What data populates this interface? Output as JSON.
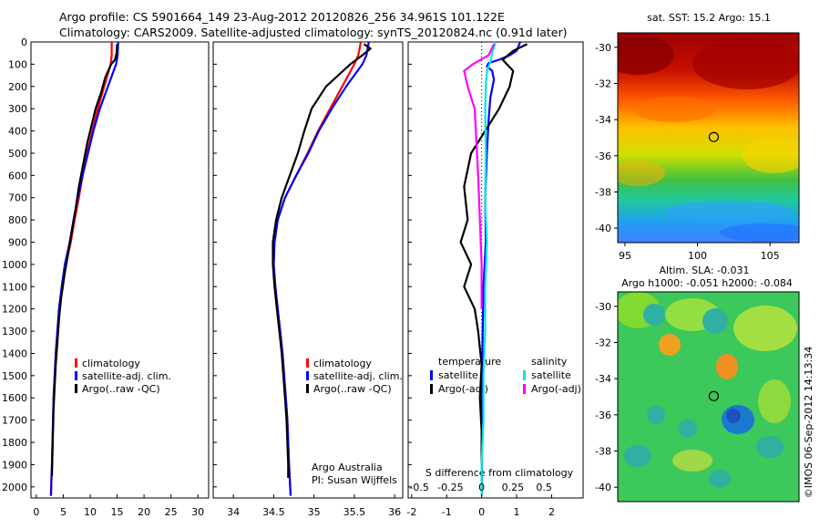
{
  "header": {
    "line1": "Argo profile: CS 5901664_149 23-Aug-2012 20120826_256 34.961S 101.122E",
    "line2": "Climatology: CARS2009. Satellite-adjusted climatology: synTS_20120824.nc (0.91d later)"
  },
  "depth_axis": {
    "ticks": [
      0,
      100,
      200,
      300,
      400,
      500,
      600,
      700,
      800,
      900,
      1000,
      1100,
      1200,
      1300,
      1400,
      1500,
      1600,
      1700,
      1800,
      1900,
      2000
    ]
  },
  "colors": {
    "climatology": "#ff0000",
    "satellite": "#0000ff",
    "argo": "#000000",
    "sal_satellite": "#00e5e5",
    "sal_argo": "#ff00ff"
  },
  "chart_data": [
    {
      "type": "line",
      "ylim": [
        2050,
        0
      ],
      "xlim": [
        -1,
        32
      ],
      "xticks": [
        0,
        5,
        10,
        15,
        20,
        25,
        30
      ],
      "legend": [
        "climatology",
        "satellite-adj. clim.",
        "Argo(..raw -QC)"
      ],
      "series": [
        {
          "name": "climatology",
          "color": "#ff0000",
          "points": [
            [
              14,
              0
            ],
            [
              14,
              60
            ],
            [
              13.8,
              100
            ],
            [
              12.6,
              200
            ],
            [
              11.4,
              300
            ],
            [
              10.4,
              400
            ],
            [
              9.4,
              500
            ],
            [
              8.6,
              600
            ],
            [
              7.9,
              700
            ],
            [
              7.1,
              800
            ],
            [
              6.4,
              900
            ],
            [
              5.5,
              1000
            ],
            [
              4.9,
              1100
            ],
            [
              4.3,
              1200
            ],
            [
              3.9,
              1300
            ],
            [
              3.6,
              1400
            ],
            [
              3.4,
              1500
            ],
            [
              3.2,
              1600
            ],
            [
              3.1,
              1700
            ],
            [
              3.0,
              1800
            ],
            [
              2.9,
              1900
            ],
            [
              2.7,
              2040
            ]
          ]
        },
        {
          "name": "satellite-adj. clim.",
          "color": "#0000ff",
          "points": [
            [
              15.2,
              0
            ],
            [
              15.1,
              60
            ],
            [
              14.8,
              100
            ],
            [
              13.3,
              200
            ],
            [
              11.8,
              300
            ],
            [
              10.6,
              400
            ],
            [
              9.6,
              500
            ],
            [
              8.6,
              600
            ],
            [
              7.7,
              700
            ],
            [
              6.9,
              800
            ],
            [
              6.2,
              900
            ],
            [
              5.3,
              1000
            ],
            [
              4.7,
              1100
            ],
            [
              4.2,
              1200
            ],
            [
              3.9,
              1300
            ],
            [
              3.6,
              1400
            ],
            [
              3.4,
              1500
            ],
            [
              3.2,
              1600
            ],
            [
              3.1,
              1700
            ],
            [
              3.0,
              1800
            ],
            [
              2.9,
              1900
            ],
            [
              2.7,
              2040
            ]
          ]
        },
        {
          "name": "Argo(..raw -QC)",
          "color": "#000000",
          "points": [
            [
              15.0,
              10
            ],
            [
              14.9,
              50
            ],
            [
              14.6,
              80
            ],
            [
              13.9,
              100
            ],
            [
              12.8,
              160
            ],
            [
              12.0,
              230
            ],
            [
              11.0,
              300
            ],
            [
              10.2,
              380
            ],
            [
              9.5,
              450
            ],
            [
              8.7,
              550
            ],
            [
              7.9,
              650
            ],
            [
              7.3,
              750
            ],
            [
              6.6,
              850
            ],
            [
              5.9,
              950
            ],
            [
              5.2,
              1050
            ],
            [
              4.6,
              1150
            ],
            [
              4.2,
              1250
            ],
            [
              3.9,
              1350
            ],
            [
              3.6,
              1450
            ],
            [
              3.4,
              1550
            ],
            [
              3.2,
              1650
            ],
            [
              3.1,
              1750
            ],
            [
              3.0,
              1850
            ],
            [
              2.9,
              1950
            ]
          ]
        }
      ]
    },
    {
      "type": "line",
      "ylim": [
        2050,
        0
      ],
      "xlim": [
        33.75,
        36.1
      ],
      "xticks": [
        34,
        34.5,
        35,
        35.5,
        36
      ],
      "legend": [
        "climatology",
        "satellite-adj. clim.",
        "Argo(..raw -QC)"
      ],
      "annotation": [
        "Argo Australia",
        "PI: Susan Wijffels"
      ],
      "series": [
        {
          "name": "climatology",
          "color": "#ff0000",
          "points": [
            [
              35.58,
              0
            ],
            [
              35.55,
              60
            ],
            [
              35.5,
              100
            ],
            [
              35.35,
              200
            ],
            [
              35.2,
              300
            ],
            [
              35.05,
              400
            ],
            [
              34.92,
              500
            ],
            [
              34.78,
              600
            ],
            [
              34.64,
              700
            ],
            [
              34.55,
              800
            ],
            [
              34.51,
              900
            ],
            [
              34.5,
              1000
            ],
            [
              34.52,
              1100
            ],
            [
              34.55,
              1200
            ],
            [
              34.58,
              1300
            ],
            [
              34.61,
              1400
            ],
            [
              34.63,
              1500
            ],
            [
              34.65,
              1600
            ],
            [
              34.67,
              1700
            ],
            [
              34.68,
              1800
            ],
            [
              34.69,
              1900
            ],
            [
              34.71,
              2040
            ]
          ]
        },
        {
          "name": "satellite-adj. clim.",
          "color": "#0000ff",
          "points": [
            [
              35.68,
              0
            ],
            [
              35.65,
              60
            ],
            [
              35.6,
              100
            ],
            [
              35.4,
              200
            ],
            [
              35.22,
              300
            ],
            [
              35.06,
              400
            ],
            [
              34.93,
              500
            ],
            [
              34.78,
              600
            ],
            [
              34.64,
              700
            ],
            [
              34.55,
              800
            ],
            [
              34.51,
              900
            ],
            [
              34.5,
              1000
            ],
            [
              34.52,
              1100
            ],
            [
              34.55,
              1200
            ],
            [
              34.58,
              1300
            ],
            [
              34.61,
              1400
            ],
            [
              34.63,
              1500
            ],
            [
              34.65,
              1600
            ],
            [
              34.67,
              1700
            ],
            [
              34.68,
              1800
            ],
            [
              34.69,
              1900
            ],
            [
              34.71,
              2040
            ]
          ]
        },
        {
          "name": "Argo(..raw -QC)",
          "color": "#000000",
          "points": [
            [
              35.62,
              10
            ],
            [
              35.7,
              30
            ],
            [
              35.6,
              60
            ],
            [
              35.45,
              100
            ],
            [
              35.15,
              200
            ],
            [
              34.97,
              300
            ],
            [
              34.88,
              400
            ],
            [
              34.8,
              500
            ],
            [
              34.7,
              600
            ],
            [
              34.6,
              700
            ],
            [
              34.53,
              800
            ],
            [
              34.49,
              900
            ],
            [
              34.49,
              1000
            ],
            [
              34.51,
              1100
            ],
            [
              34.54,
              1200
            ],
            [
              34.57,
              1300
            ],
            [
              34.6,
              1400
            ],
            [
              34.62,
              1500
            ],
            [
              34.64,
              1600
            ],
            [
              34.66,
              1700
            ],
            [
              34.67,
              1800
            ],
            [
              34.68,
              1900
            ],
            [
              34.68,
              1960
            ]
          ]
        }
      ]
    },
    {
      "type": "line",
      "ylim": [
        2050,
        0
      ],
      "xlim": [
        -2.1,
        2.9
      ],
      "xticks": [
        -2,
        -1,
        0,
        1,
        2
      ],
      "xticklabels_top": [
        "-0.5",
        "-0.25",
        "0",
        "0.25",
        "0.5"
      ],
      "xticklabels_top_values": [
        -0.5,
        -0.25,
        0,
        0.25,
        0.5
      ],
      "xlabel": "S difference from climatology",
      "legend_temperature": {
        "title": "temperature",
        "items": [
          "satellite",
          "Argo(-adj)"
        ]
      },
      "legend_salinity": {
        "title": "salinity",
        "items": [
          "satellite",
          "Argo(-adj)"
        ]
      },
      "series": [
        {
          "name": "temperature satellite",
          "color": "#0000ff",
          "points": [
            [
              1.1,
              0
            ],
            [
              1.0,
              40
            ],
            [
              0.8,
              60
            ],
            [
              0.5,
              80
            ],
            [
              0.2,
              95
            ],
            [
              0.15,
              110
            ],
            [
              0.3,
              130
            ],
            [
              0.35,
              170
            ],
            [
              0.25,
              250
            ],
            [
              0.2,
              350
            ],
            [
              0.15,
              500
            ],
            [
              0.1,
              700
            ],
            [
              0.12,
              900
            ],
            [
              0.05,
              1100
            ],
            [
              0.02,
              1400
            ],
            [
              0,
              1700
            ],
            [
              0,
              2040
            ]
          ]
        },
        {
          "name": "temperature Argo(-adj)",
          "color": "#000000",
          "points": [
            [
              1.3,
              10
            ],
            [
              0.9,
              40
            ],
            [
              0.6,
              80
            ],
            [
              0.9,
              130
            ],
            [
              0.8,
              200
            ],
            [
              0.5,
              300
            ],
            [
              0.1,
              400
            ],
            [
              -0.3,
              500
            ],
            [
              -0.5,
              650
            ],
            [
              -0.4,
              800
            ],
            [
              -0.6,
              900
            ],
            [
              -0.3,
              1000
            ],
            [
              -0.5,
              1100
            ],
            [
              -0.2,
              1200
            ],
            [
              -0.1,
              1300
            ],
            [
              0,
              1450
            ],
            [
              -0.05,
              1600
            ],
            [
              0,
              1750
            ],
            [
              0,
              1900
            ],
            [
              0,
              2000
            ]
          ]
        },
        {
          "name": "salinity satellite",
          "color": "#00e5e5",
          "points": [
            [
              0.4,
              0
            ],
            [
              0.3,
              50
            ],
            [
              0.25,
              90
            ],
            [
              0.15,
              130
            ],
            [
              0.12,
              200
            ],
            [
              0.1,
              300
            ],
            [
              0.12,
              500
            ],
            [
              0.1,
              700
            ],
            [
              0.15,
              900
            ],
            [
              0.1,
              1100
            ],
            [
              0.1,
              1300
            ],
            [
              0.05,
              1500
            ],
            [
              0.05,
              1700
            ],
            [
              0,
              1900
            ],
            [
              0,
              2040
            ]
          ]
        },
        {
          "name": "salinity Argo(-adj)",
          "color": "#ff00ff",
          "points": [
            [
              0.35,
              10
            ],
            [
              0.2,
              60
            ],
            [
              -0.25,
              100
            ],
            [
              -0.5,
              130
            ],
            [
              -0.4,
              200
            ],
            [
              -0.2,
              300
            ],
            [
              -0.15,
              450
            ],
            [
              -0.1,
              600
            ],
            [
              -0.05,
              800
            ],
            [
              0,
              1000
            ],
            [
              0,
              1200
            ]
          ]
        }
      ]
    },
    {
      "type": "heatmap",
      "title": "sat. SST: 15.2  Argo: 15.1",
      "xlim": [
        94.5,
        107
      ],
      "ylim": [
        -40.8,
        -29.2
      ],
      "xticks": [
        95,
        100,
        105
      ],
      "yticks": [
        -30,
        -32,
        -34,
        -36,
        -38,
        -40
      ],
      "marker": {
        "lon": 101.122,
        "lat": -34.961
      }
    },
    {
      "type": "heatmap",
      "title": "Altim. SLA: -0.031",
      "subtitle": "Argo h1000: -0.051  h2000: -0.084",
      "xlim": [
        94.5,
        107
      ],
      "ylim": [
        -40.8,
        -29.2
      ],
      "yticks": [
        -30,
        -32,
        -34,
        -36,
        -38,
        -40
      ],
      "marker": {
        "lon": 101.122,
        "lat": -34.961
      }
    }
  ],
  "footer": {
    "stamp": "©IMOS 06-Sep-2012 14:13:34"
  }
}
